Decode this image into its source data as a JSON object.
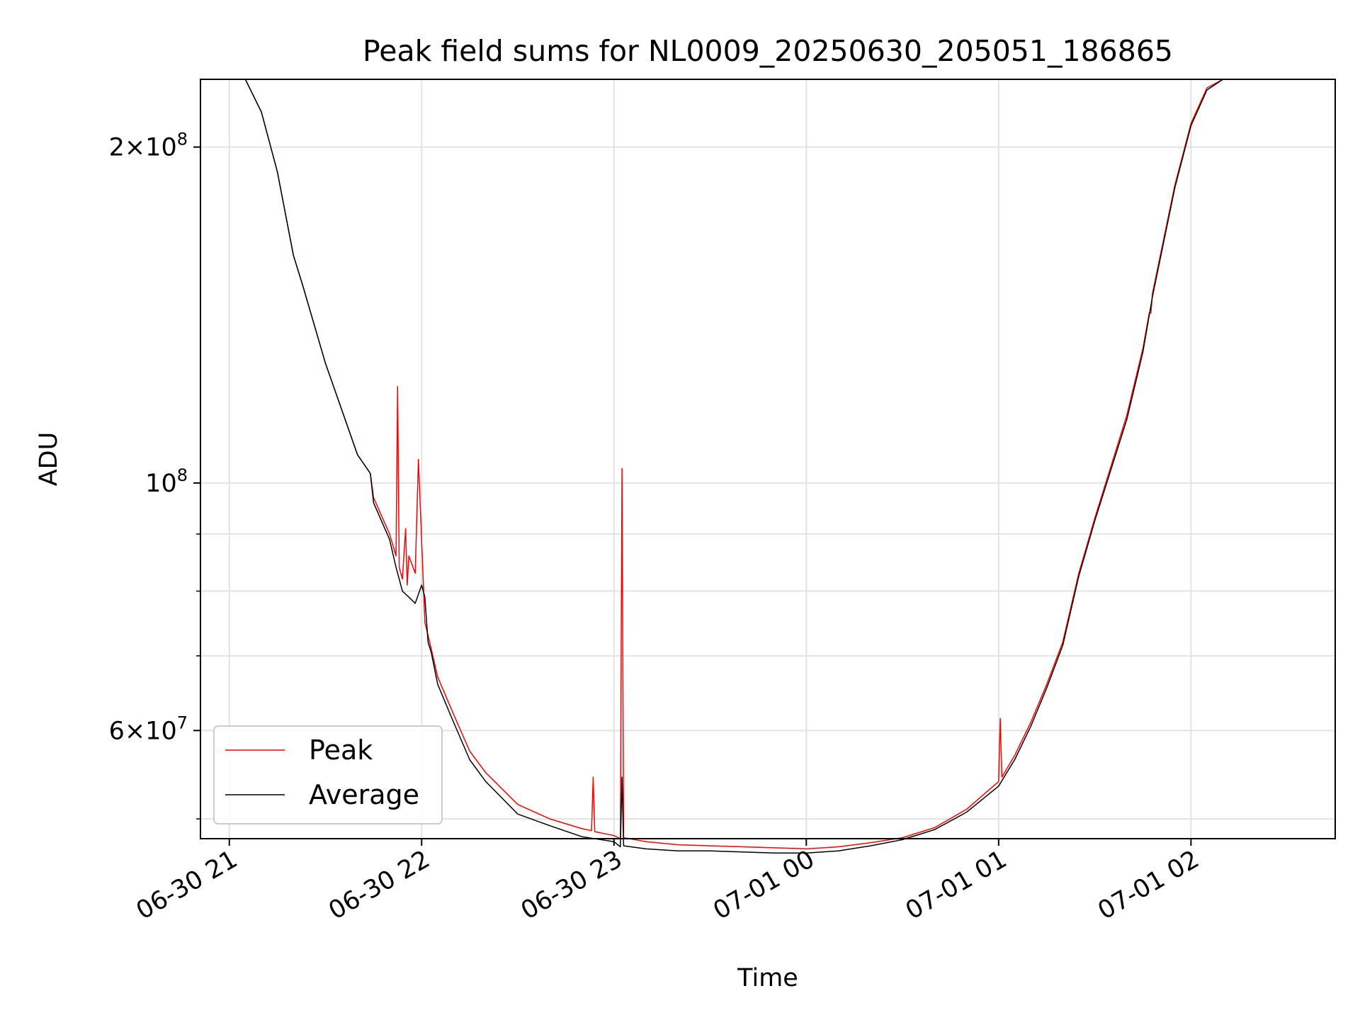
{
  "chart_data": {
    "type": "line",
    "title": "Peak field sums for NL0009_20250630_205051_186865",
    "xlabel": "Time",
    "ylabel": "ADU",
    "yscale": "log",
    "ylim": [
      48000000,
      230000000
    ],
    "xlim": [
      "2025-06-30 20:51:00",
      "2025-07-01 02:45:00"
    ],
    "grid": true,
    "legend_position": "lower-left",
    "x_ticks": [
      {
        "value": "2025-06-30 21:00:00",
        "label": "06-30 21"
      },
      {
        "value": "2025-06-30 22:00:00",
        "label": "06-30 22"
      },
      {
        "value": "2025-06-30 23:00:00",
        "label": "06-30 23"
      },
      {
        "value": "2025-07-01 00:00:00",
        "label": "07-01 00"
      },
      {
        "value": "2025-07-01 01:00:00",
        "label": "07-01 01"
      },
      {
        "value": "2025-07-01 02:00:00",
        "label": "07-01 02"
      }
    ],
    "y_ticks_major": [
      {
        "value": 100000000,
        "base": "10",
        "exp": "8"
      },
      {
        "value": 200000000,
        "mant": "2",
        "base": "10",
        "exp": "8"
      },
      {
        "value": 60000000,
        "mant": "6",
        "base": "10",
        "exp": "7"
      }
    ],
    "y_ticks_minor": [
      50000000,
      70000000,
      80000000,
      90000000
    ],
    "series": [
      {
        "name": "Peak",
        "color": "#ff0000",
        "x": [
          "2025-06-30 20:57:00",
          "2025-06-30 21:05:00",
          "2025-06-30 21:10:00",
          "2025-06-30 21:15:00",
          "2025-06-30 21:20:00",
          "2025-06-30 21:23:00",
          "2025-06-30 21:30:00",
          "2025-06-30 21:40:00",
          "2025-06-30 21:44:00",
          "2025-06-30 21:45:00",
          "2025-06-30 21:50:00",
          "2025-06-30 21:52:00",
          "2025-06-30 21:52:30",
          "2025-06-30 21:53:00",
          "2025-06-30 21:54:00",
          "2025-06-30 21:55:00",
          "2025-06-30 21:55:30",
          "2025-06-30 21:56:00",
          "2025-06-30 21:58:00",
          "2025-06-30 21:59:00",
          "2025-06-30 22:01:00",
          "2025-06-30 22:02:00",
          "2025-06-30 22:02:30",
          "2025-06-30 22:03:00",
          "2025-06-30 22:05:00",
          "2025-06-30 22:10:00",
          "2025-06-30 22:15:00",
          "2025-06-30 22:20:00",
          "2025-06-30 22:30:00",
          "2025-06-30 22:40:00",
          "2025-06-30 22:50:00",
          "2025-06-30 22:53:00",
          "2025-06-30 22:53:30",
          "2025-06-30 22:54:00",
          "2025-06-30 23:00:00",
          "2025-06-30 23:02:00",
          "2025-06-30 23:02:30",
          "2025-06-30 23:03:00",
          "2025-06-30 23:10:00",
          "2025-06-30 23:20:00",
          "2025-06-30 23:30:00",
          "2025-06-30 23:40:00",
          "2025-06-30 23:50:00",
          "2025-07-01 00:00:00",
          "2025-07-01 00:10:00",
          "2025-07-01 00:20:00",
          "2025-07-01 00:30:00",
          "2025-07-01 00:40:00",
          "2025-07-01 00:50:00",
          "2025-07-01 01:00:00",
          "2025-07-01 01:00:30",
          "2025-07-01 01:01:00",
          "2025-07-01 01:05:00",
          "2025-07-01 01:10:00",
          "2025-07-01 01:15:00",
          "2025-07-01 01:20:00",
          "2025-07-01 01:25:00",
          "2025-07-01 01:30:00",
          "2025-07-01 01:40:00",
          "2025-07-01 01:45:00",
          "2025-07-01 01:47:00",
          "2025-07-01 01:47:30",
          "2025-07-01 01:48:00",
          "2025-07-01 01:55:00",
          "2025-07-01 02:00:00",
          "2025-07-01 02:05:00",
          "2025-07-01 02:10:00",
          "2025-07-01 02:15:00"
        ],
        "values": [
          230000000,
          230000000,
          215000000,
          190000000,
          160000000,
          150000000,
          128000000,
          106000000,
          102000000,
          97000000,
          90000000,
          86000000,
          122000000,
          84000000,
          82000000,
          91000000,
          81000000,
          86000000,
          83000000,
          105000000,
          75000000,
          73000000,
          72000000,
          71000000,
          67000000,
          62000000,
          57500000,
          55000000,
          51500000,
          50000000,
          49000000,
          48800000,
          54500000,
          48700000,
          48300000,
          48000000,
          103000000,
          48100000,
          47700000,
          47400000,
          47300000,
          47200000,
          47100000,
          47000000,
          47200000,
          47600000,
          48100000,
          49100000,
          51000000,
          54000000,
          61500000,
          54500000,
          57000000,
          61000000,
          66000000,
          72000000,
          83000000,
          93000000,
          115000000,
          132000000,
          142000000,
          142000000,
          148000000,
          185000000,
          210000000,
          226000000,
          230000000,
          230000000
        ]
      },
      {
        "name": "Average",
        "color": "#000000",
        "x": [
          "2025-06-30 20:57:00",
          "2025-06-30 21:05:00",
          "2025-06-30 21:10:00",
          "2025-06-30 21:15:00",
          "2025-06-30 21:20:00",
          "2025-06-30 21:23:00",
          "2025-06-30 21:30:00",
          "2025-06-30 21:40:00",
          "2025-06-30 21:44:00",
          "2025-06-30 21:45:00",
          "2025-06-30 21:50:00",
          "2025-06-30 21:52:00",
          "2025-06-30 21:53:00",
          "2025-06-30 21:54:00",
          "2025-06-30 21:56:00",
          "2025-06-30 21:58:00",
          "2025-06-30 22:00:00",
          "2025-06-30 22:01:00",
          "2025-06-30 22:02:00",
          "2025-06-30 22:03:00",
          "2025-06-30 22:05:00",
          "2025-06-30 22:10:00",
          "2025-06-30 22:15:00",
          "2025-06-30 22:20:00",
          "2025-06-30 22:30:00",
          "2025-06-30 22:40:00",
          "2025-06-30 22:50:00",
          "2025-06-30 23:00:00",
          "2025-06-30 23:02:00",
          "2025-06-30 23:02:30",
          "2025-06-30 23:03:00",
          "2025-06-30 23:10:00",
          "2025-06-30 23:20:00",
          "2025-06-30 23:30:00",
          "2025-06-30 23:40:00",
          "2025-06-30 23:50:00",
          "2025-07-01 00:00:00",
          "2025-07-01 00:10:00",
          "2025-07-01 00:20:00",
          "2025-07-01 00:30:00",
          "2025-07-01 00:40:00",
          "2025-07-01 00:50:00",
          "2025-07-01 01:00:00",
          "2025-07-01 01:05:00",
          "2025-07-01 01:10:00",
          "2025-07-01 01:15:00",
          "2025-07-01 01:20:00",
          "2025-07-01 01:25:00",
          "2025-07-01 01:30:00",
          "2025-07-01 01:40:00",
          "2025-07-01 01:45:00",
          "2025-07-01 01:48:00",
          "2025-07-01 01:55:00",
          "2025-07-01 02:00:00",
          "2025-07-01 02:05:00",
          "2025-07-01 02:10:00",
          "2025-07-01 02:15:00"
        ],
        "values": [
          230000000,
          230000000,
          215000000,
          190000000,
          160000000,
          150000000,
          128000000,
          106000000,
          102000000,
          96000000,
          89000000,
          84000000,
          82000000,
          80000000,
          79000000,
          78000000,
          81000000,
          79000000,
          72000000,
          70500000,
          66000000,
          61000000,
          56500000,
          54000000,
          50500000,
          49300000,
          48200000,
          47700000,
          47200000,
          54500000,
          47300000,
          47000000,
          46800000,
          46800000,
          46700000,
          46600000,
          46600000,
          46800000,
          47300000,
          47900000,
          48900000,
          50700000,
          53500000,
          56500000,
          60500000,
          65500000,
          71500000,
          82500000,
          92500000,
          114000000,
          131000000,
          147000000,
          184000000,
          209000000,
          225000000,
          230000000,
          230000000
        ]
      }
    ]
  }
}
